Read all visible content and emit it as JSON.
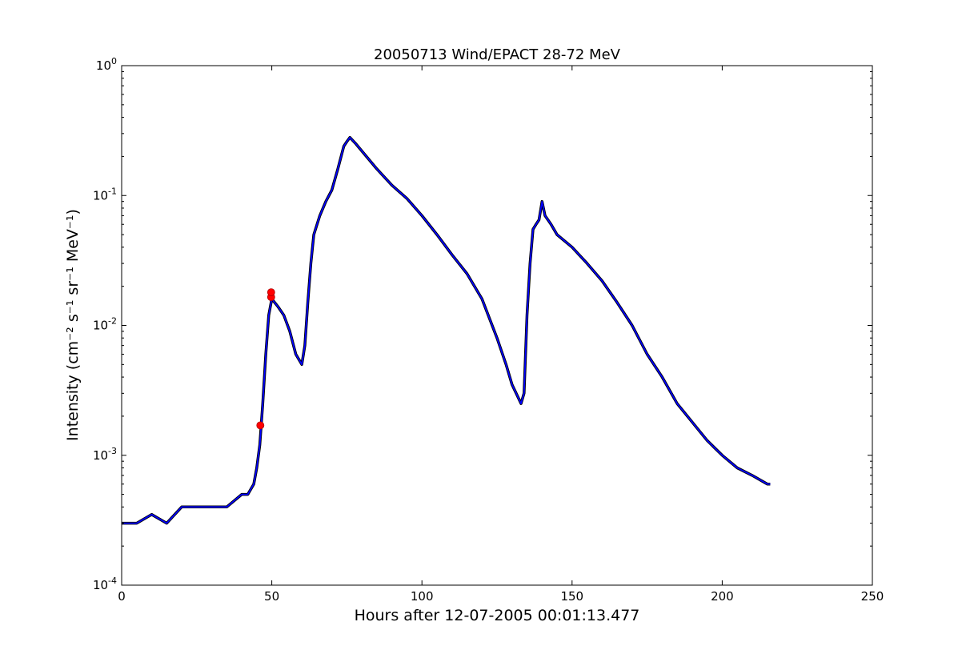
{
  "chart_data": {
    "type": "line",
    "title": "20050713 Wind/EPACT 28-72 MeV",
    "xlabel": "Hours after 12-07-2005 00:01:13.477",
    "ylabel": "Intensity (cm⁻² s⁻¹ sr⁻¹ MeV⁻¹)",
    "xlim": [
      0,
      250
    ],
    "ylim": [
      0.0001,
      1
    ],
    "yscale": "log",
    "x_ticks": [
      0,
      50,
      100,
      150,
      200,
      250
    ],
    "y_ticks": [
      {
        "value": 0.0001,
        "base": "10",
        "exp": "-4"
      },
      {
        "value": 0.001,
        "base": "10",
        "exp": "-3"
      },
      {
        "value": 0.01,
        "base": "10",
        "exp": "-2"
      },
      {
        "value": 0.1,
        "base": "10",
        "exp": "-1"
      },
      {
        "value": 1,
        "base": "10",
        "exp": "0"
      }
    ],
    "grid": false,
    "legend": "none",
    "series": [
      {
        "color": "#000000",
        "x": [
          0,
          5,
          10,
          15,
          20,
          25,
          30,
          35,
          40,
          42,
          44,
          45,
          46,
          47,
          48,
          49,
          50,
          52,
          54,
          56,
          58,
          60,
          61,
          62,
          63,
          64,
          66,
          68,
          70,
          72,
          74,
          75,
          76,
          78,
          80,
          85,
          90,
          95,
          100,
          105,
          110,
          115,
          120,
          125,
          128,
          130,
          132,
          133,
          134,
          135,
          136,
          137,
          138,
          139,
          140,
          141,
          143,
          145,
          150,
          155,
          160,
          165,
          170,
          175,
          180,
          185,
          190,
          195,
          200,
          205,
          210,
          215,
          216
        ],
        "y": [
          0.0003,
          0.0003,
          0.00035,
          0.0003,
          0.0004,
          0.0004,
          0.0004,
          0.0004,
          0.0005,
          0.0005,
          0.0006,
          0.0008,
          0.0012,
          0.0025,
          0.006,
          0.012,
          0.016,
          0.014,
          0.012,
          0.009,
          0.006,
          0.005,
          0.007,
          0.015,
          0.03,
          0.05,
          0.07,
          0.09,
          0.11,
          0.16,
          0.24,
          0.26,
          0.28,
          0.25,
          0.22,
          0.16,
          0.12,
          0.095,
          0.07,
          0.05,
          0.035,
          0.025,
          0.016,
          0.008,
          0.005,
          0.0035,
          0.0028,
          0.0025,
          0.003,
          0.012,
          0.03,
          0.055,
          0.06,
          0.065,
          0.09,
          0.07,
          0.06,
          0.05,
          0.04,
          0.03,
          0.022,
          0.015,
          0.01,
          0.006,
          0.004,
          0.0025,
          0.0018,
          0.0013,
          0.001,
          0.0008,
          0.0007,
          0.0006,
          0.0006
        ]
      },
      {
        "color": "#0000ff",
        "x": [
          0,
          5,
          10,
          15,
          20,
          25,
          30,
          35,
          40,
          42,
          44,
          45,
          46,
          47,
          48,
          49,
          50,
          52,
          54,
          56,
          58,
          60,
          61,
          62,
          63,
          64,
          66,
          68,
          70,
          72,
          74,
          75,
          76,
          78,
          80,
          85,
          90,
          95,
          100,
          105,
          110,
          115,
          120,
          125,
          128,
          130,
          132,
          133,
          134,
          135,
          136,
          137,
          138,
          139,
          140,
          141,
          143,
          145,
          150,
          155,
          160,
          165,
          170,
          175,
          180,
          185,
          190,
          195,
          200,
          205,
          210,
          215,
          216
        ],
        "y": [
          0.0003,
          0.0003,
          0.00035,
          0.0003,
          0.0004,
          0.0004,
          0.0004,
          0.0004,
          0.0005,
          0.0005,
          0.0006,
          0.0008,
          0.0012,
          0.0025,
          0.006,
          0.012,
          0.016,
          0.014,
          0.012,
          0.009,
          0.006,
          0.005,
          0.007,
          0.015,
          0.03,
          0.05,
          0.07,
          0.09,
          0.11,
          0.16,
          0.24,
          0.26,
          0.28,
          0.25,
          0.22,
          0.16,
          0.12,
          0.095,
          0.07,
          0.05,
          0.035,
          0.025,
          0.016,
          0.008,
          0.005,
          0.0035,
          0.0028,
          0.0025,
          0.003,
          0.012,
          0.03,
          0.055,
          0.06,
          0.065,
          0.09,
          0.07,
          0.06,
          0.05,
          0.04,
          0.03,
          0.022,
          0.015,
          0.01,
          0.006,
          0.004,
          0.0025,
          0.0018,
          0.0013,
          0.001,
          0.0008,
          0.0007,
          0.0006,
          0.0006
        ]
      }
    ],
    "markers": [
      {
        "x": 46.2,
        "y": 0.0017,
        "color": "#ff0000"
      },
      {
        "x": 49.8,
        "y": 0.0165,
        "color": "#ff0000"
      },
      {
        "x": 49.8,
        "y": 0.018,
        "color": "#ff0000"
      }
    ]
  }
}
